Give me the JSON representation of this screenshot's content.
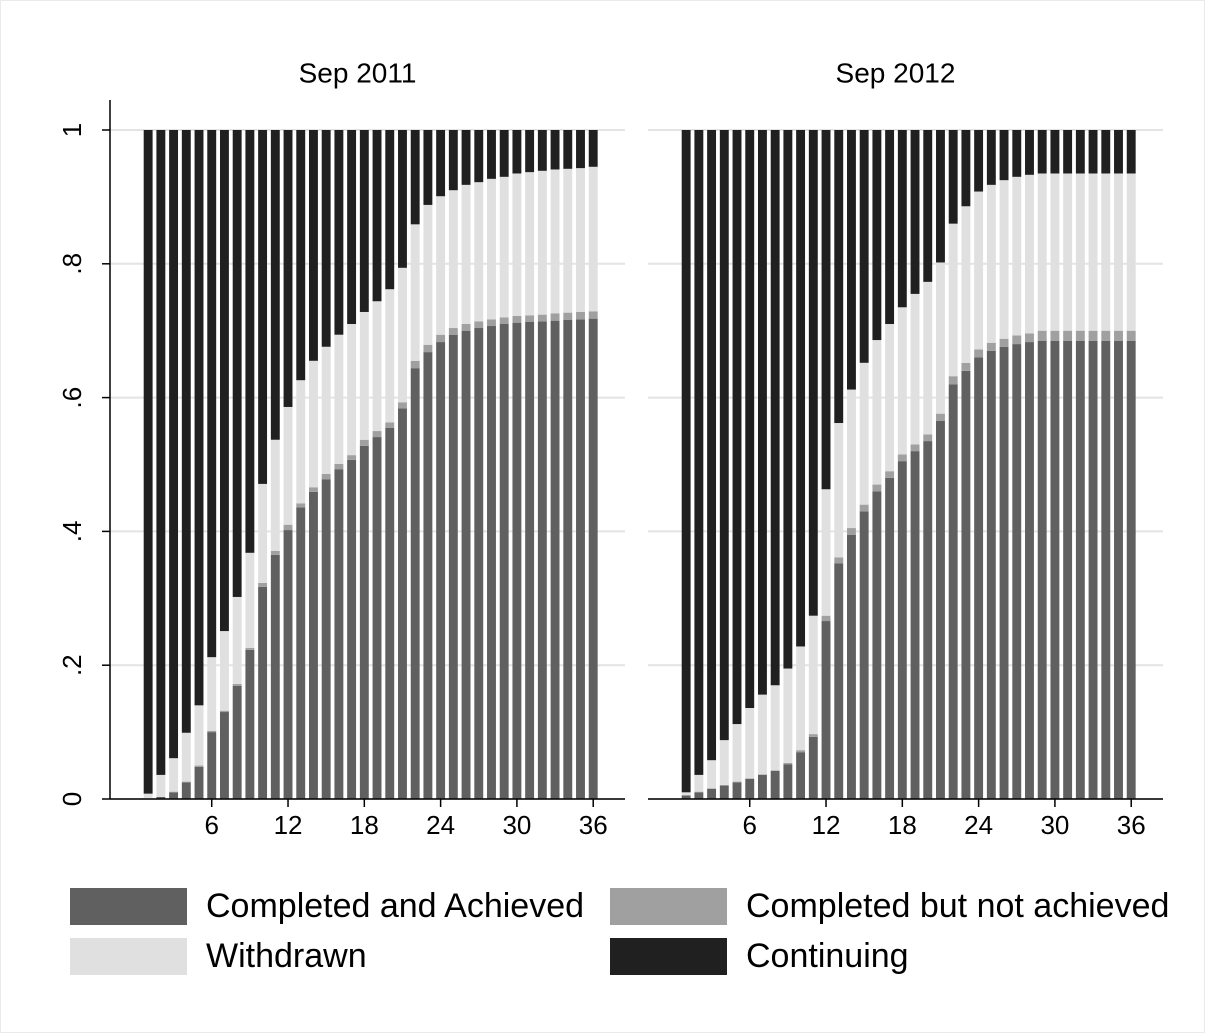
{
  "chart_data": [
    {
      "type": "bar",
      "stacked": true,
      "title": "Sep 2011",
      "x": [
        1,
        2,
        3,
        4,
        5,
        6,
        7,
        8,
        9,
        10,
        11,
        12,
        13,
        14,
        15,
        16,
        17,
        18,
        19,
        20,
        21,
        22,
        23,
        24,
        25,
        26,
        27,
        28,
        29,
        30,
        31,
        32,
        33,
        34,
        35,
        36
      ],
      "xlim": [
        -2,
        38.5
      ],
      "xticks": [
        6,
        12,
        18,
        24,
        30,
        36
      ],
      "ylim": [
        0,
        1
      ],
      "yticks": [
        0,
        {
          "value": 0.2,
          "label": ".2"
        },
        {
          "value": 0.4,
          "label": ".4"
        },
        {
          "value": 0.6,
          "label": ".6"
        },
        {
          "value": 0.8,
          "label": ".8"
        },
        1
      ],
      "grid": true,
      "series": [
        {
          "name": "Completed and Achieved",
          "color": "#606060",
          "values": [
            0,
            0.003,
            0.01,
            0.025,
            0.048,
            0.1,
            0.13,
            0.169,
            0.223,
            0.317,
            0.365,
            0.402,
            0.436,
            0.459,
            0.478,
            0.493,
            0.507,
            0.528,
            0.541,
            0.555,
            0.584,
            0.644,
            0.668,
            0.683,
            0.694,
            0.7,
            0.704,
            0.707,
            0.71,
            0.712,
            0.713,
            0.714,
            0.715,
            0.716,
            0.717,
            0.718
          ]
        },
        {
          "name": "Completed but not achieved",
          "color": "#a0a0a0",
          "values": [
            0,
            0,
            0.001,
            0.001,
            0.002,
            0.002,
            0.002,
            0.003,
            0.003,
            0.006,
            0.006,
            0.008,
            0.006,
            0.007,
            0.008,
            0.008,
            0.007,
            0.009,
            0.009,
            0.008,
            0.009,
            0.011,
            0.011,
            0.011,
            0.01,
            0.01,
            0.01,
            0.01,
            0.01,
            0.01,
            0.01,
            0.01,
            0.011,
            0.011,
            0.011,
            0.011
          ]
        },
        {
          "name": "Withdrawn",
          "color": "#e0e0e0",
          "values": [
            0.008,
            0.033,
            0.05,
            0.073,
            0.09,
            0.11,
            0.119,
            0.13,
            0.142,
            0.148,
            0.166,
            0.176,
            0.184,
            0.189,
            0.19,
            0.193,
            0.196,
            0.191,
            0.194,
            0.199,
            0.201,
            0.204,
            0.209,
            0.207,
            0.206,
            0.208,
            0.208,
            0.21,
            0.21,
            0.213,
            0.214,
            0.215,
            0.215,
            0.215,
            0.215,
            0.216
          ]
        },
        {
          "name": "Continuing",
          "color": "#202020",
          "values": [
            0.992,
            0.964,
            0.939,
            0.901,
            0.86,
            0.788,
            0.749,
            0.698,
            0.632,
            0.529,
            0.463,
            0.414,
            0.374,
            0.345,
            0.324,
            0.306,
            0.29,
            0.272,
            0.256,
            0.238,
            0.206,
            0.141,
            0.112,
            0.099,
            0.09,
            0.082,
            0.078,
            0.073,
            0.07,
            0.065,
            0.063,
            0.061,
            0.059,
            0.058,
            0.057,
            0.055
          ]
        }
      ]
    },
    {
      "type": "bar",
      "stacked": true,
      "title": "Sep 2012",
      "x": [
        1,
        2,
        3,
        4,
        5,
        6,
        7,
        8,
        9,
        10,
        11,
        12,
        13,
        14,
        15,
        16,
        17,
        18,
        19,
        20,
        21,
        22,
        23,
        24,
        25,
        26,
        27,
        28,
        29,
        30,
        31,
        32,
        33,
        34,
        35,
        36
      ],
      "xlim": [
        -2,
        38.5
      ],
      "xticks": [
        6,
        12,
        18,
        24,
        30,
        36
      ],
      "ylim": [
        0,
        1
      ],
      "yticks": [
        0,
        0.2,
        0.4,
        0.6,
        0.8,
        1
      ],
      "grid": true,
      "series": [
        {
          "color": "#606060",
          "values": [
            0.005,
            0.01,
            0.015,
            0.02,
            0.025,
            0.03,
            0.036,
            0.042,
            0.052,
            0.07,
            0.093,
            0.266,
            0.352,
            0.395,
            0.43,
            0.46,
            0.48,
            0.505,
            0.52,
            0.535,
            0.565,
            0.62,
            0.64,
            0.66,
            0.67,
            0.676,
            0.68,
            0.683,
            0.685,
            0.685,
            0.685,
            0.685,
            0.685,
            0.685,
            0.685,
            0.685
          ]
        },
        {
          "color": "#a0a0a0",
          "values": [
            0.001,
            0.001,
            0.001,
            0.001,
            0.001,
            0.001,
            0.001,
            0.001,
            0.002,
            0.003,
            0.004,
            0.008,
            0.009,
            0.01,
            0.01,
            0.01,
            0.01,
            0.01,
            0.01,
            0.01,
            0.011,
            0.012,
            0.012,
            0.012,
            0.012,
            0.012,
            0.013,
            0.013,
            0.015,
            0.015,
            0.015,
            0.015,
            0.015,
            0.015,
            0.015,
            0.015
          ]
        },
        {
          "color": "#e0e0e0",
          "values": [
            0.004,
            0.025,
            0.042,
            0.067,
            0.086,
            0.105,
            0.119,
            0.127,
            0.141,
            0.155,
            0.177,
            0.189,
            0.201,
            0.207,
            0.212,
            0.216,
            0.22,
            0.22,
            0.225,
            0.228,
            0.226,
            0.228,
            0.234,
            0.236,
            0.236,
            0.237,
            0.237,
            0.237,
            0.235,
            0.235,
            0.235,
            0.235,
            0.235,
            0.235,
            0.235,
            0.235
          ]
        },
        {
          "color": "#202020",
          "values": [
            0.99,
            0.964,
            0.942,
            0.912,
            0.888,
            0.864,
            0.844,
            0.83,
            0.805,
            0.772,
            0.726,
            0.537,
            0.438,
            0.388,
            0.348,
            0.314,
            0.29,
            0.265,
            0.245,
            0.227,
            0.198,
            0.14,
            0.114,
            0.092,
            0.082,
            0.075,
            0.07,
            0.067,
            0.065,
            0.065,
            0.065,
            0.065,
            0.065,
            0.065,
            0.065,
            0.065
          ]
        }
      ]
    }
  ]
}
